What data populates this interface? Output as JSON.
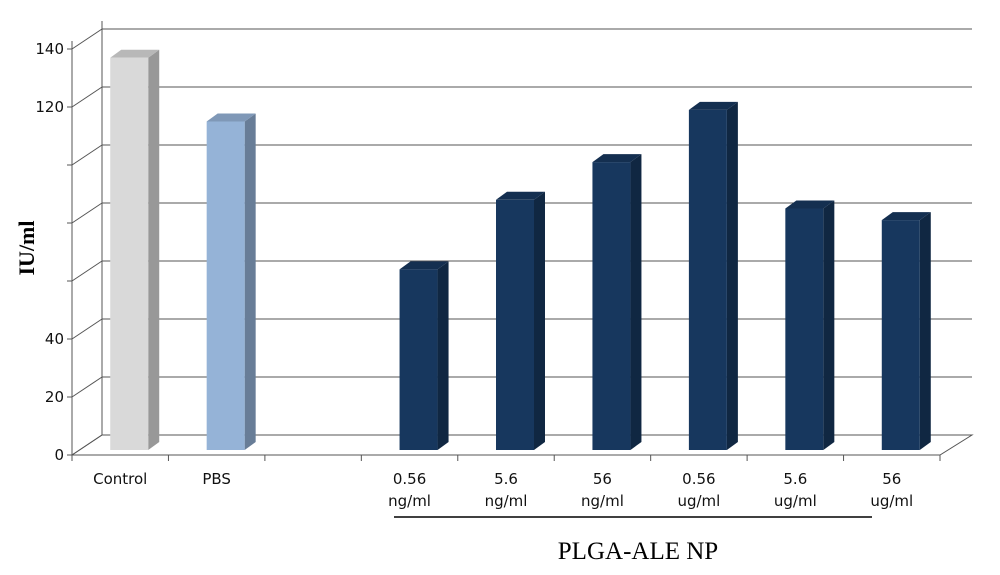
{
  "chart_data": {
    "type": "bar",
    "style": "3d",
    "categories": [
      [
        "Control"
      ],
      [
        "PBS"
      ],
      [
        ""
      ],
      [
        "0.56",
        "ng/ml"
      ],
      [
        "5.6",
        "ng/ml"
      ],
      [
        "56",
        "ng/ml"
      ],
      [
        "0.56",
        "ug/ml"
      ],
      [
        "5.6",
        "ug/ml"
      ],
      [
        "56",
        "ug/ml"
      ]
    ],
    "values": [
      137,
      115,
      null,
      64,
      88,
      101,
      119,
      85,
      81
    ],
    "bar_colors": [
      "#d9d9d9",
      "#95b3d7",
      null,
      "#17375e",
      "#17375e",
      "#17375e",
      "#17375e",
      "#17375e",
      "#17375e"
    ],
    "ylabel": "IU/ml",
    "ylim": [
      0,
      140
    ],
    "y_ticks": [
      0,
      20,
      40,
      60,
      80,
      100,
      120,
      140
    ],
    "y_tick_labels": [
      "0",
      "20",
      "40",
      "",
      "",
      "",
      "120",
      "140"
    ],
    "group_label": "PLGA-ALE NP",
    "group_span": [
      3,
      8
    ],
    "grid": true,
    "legend": "none"
  }
}
